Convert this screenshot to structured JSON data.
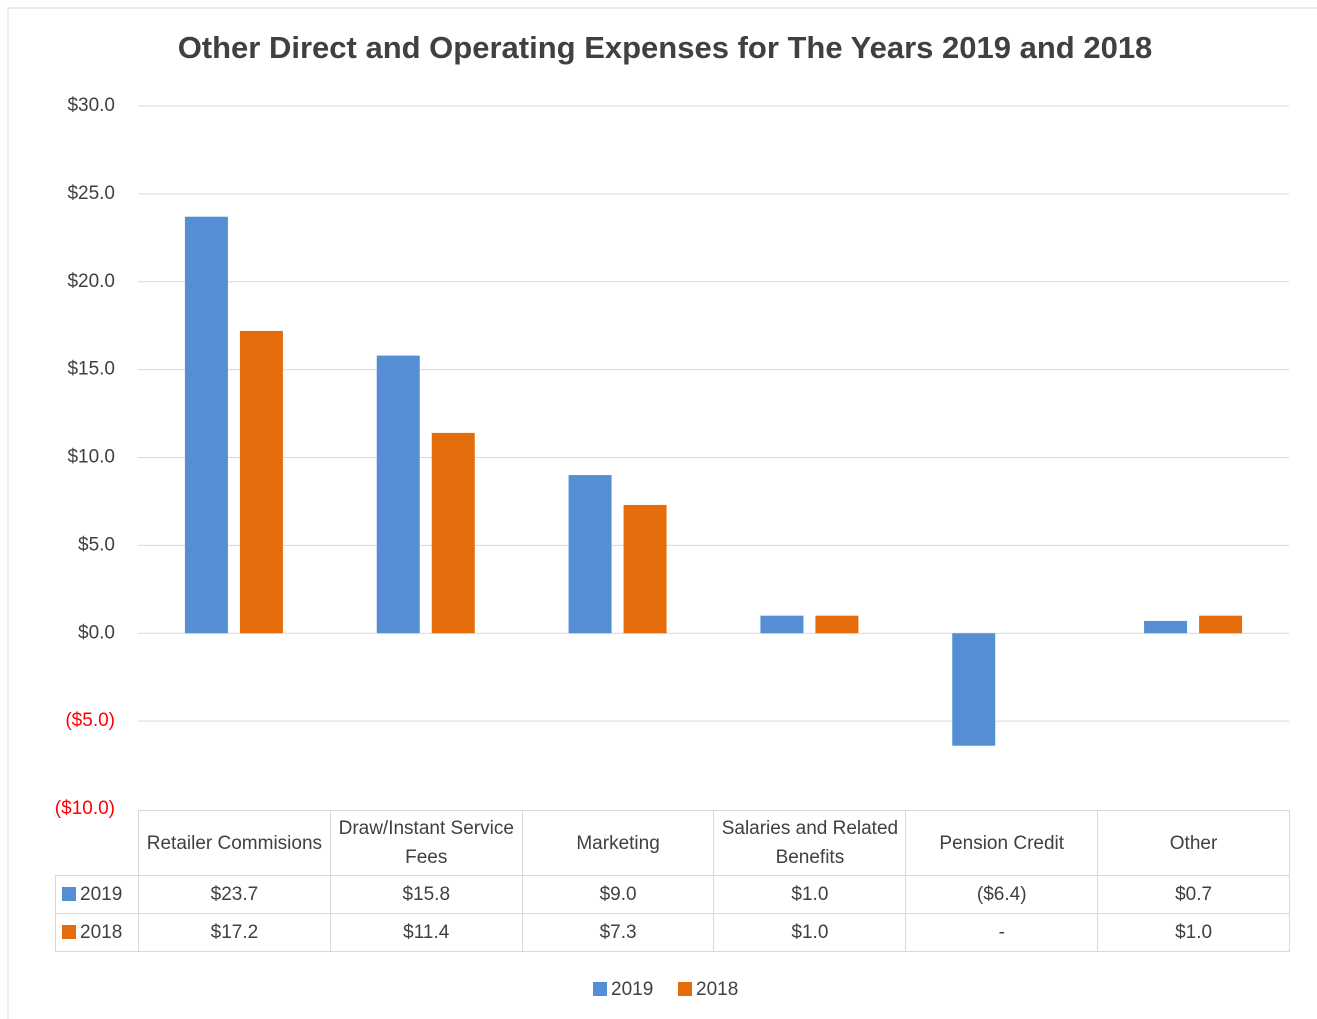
{
  "chart_data": {
    "type": "bar",
    "title": "Other Direct and Operating Expenses for The Years 2019 and 2018",
    "categories": [
      "Retailer Commisions",
      "Draw/Instant Service Fees",
      "Marketing",
      "Salaries and Related Benefits",
      "Pension Credit",
      "Other"
    ],
    "series": [
      {
        "name": "2019",
        "color": "#558ed5",
        "values": [
          23.7,
          15.8,
          9.0,
          1.0,
          -6.4,
          0.7
        ],
        "value_labels": [
          "$23.7",
          "$15.8",
          "$9.0",
          "$1.0",
          "($6.4)",
          "$0.7"
        ]
      },
      {
        "name": "2018",
        "color": "#e46c0a",
        "values": [
          17.2,
          11.4,
          7.3,
          1.0,
          null,
          1.0
        ],
        "value_labels": [
          "$17.2",
          "$11.4",
          "$7.3",
          "$1.0",
          "-",
          "$1.0"
        ]
      }
    ],
    "ylim": [
      -10,
      30
    ],
    "yticks": [
      {
        "value": 30,
        "label": "$30.0"
      },
      {
        "value": 25,
        "label": "$25.0"
      },
      {
        "value": 20,
        "label": "$20.0"
      },
      {
        "value": 15,
        "label": "$15.0"
      },
      {
        "value": 10,
        "label": "$10.0"
      },
      {
        "value": 5,
        "label": "$5.0"
      },
      {
        "value": 0,
        "label": "$0.0"
      },
      {
        "value": -5,
        "label": "($5.0)"
      },
      {
        "value": -10,
        "label": "($10.0)"
      }
    ],
    "negative_tick_color": "#ff0000",
    "title_color": "#ff0000",
    "grid": true,
    "legend": "bottom",
    "data_table": true
  }
}
